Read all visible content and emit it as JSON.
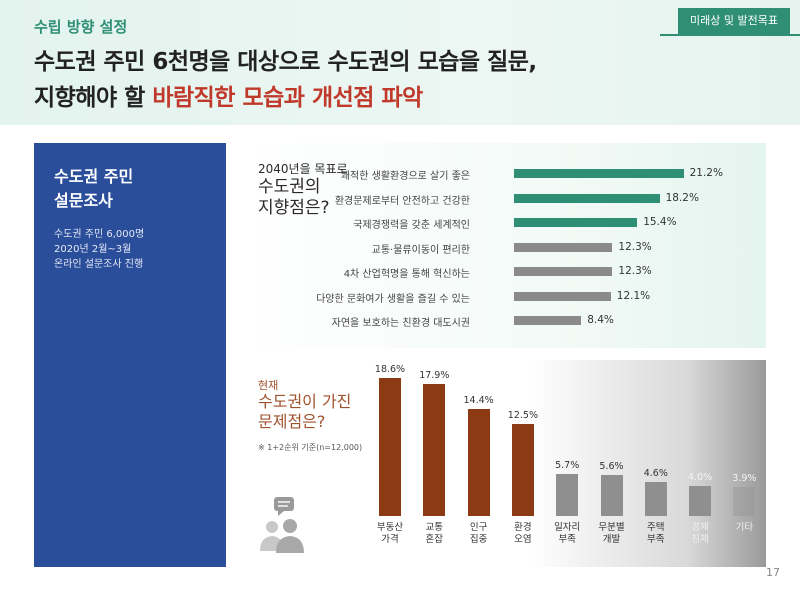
{
  "header": {
    "tab_label": "미래상 및 발전목표",
    "section_tag": "수립 방향 설정",
    "headline_line1": "수도권 주민 6천명을 대상으로 수도권의 모습을 질문,",
    "headline_line2_plain": "지향해야 할 ",
    "headline_line2_highlight": "바람직한 모습과 개선점 파악"
  },
  "survey": {
    "title_line1": "수도권 주민",
    "title_line2": "설문조사",
    "desc_line1": "수도권 주민 6,000명",
    "desc_line2": "2020년 2월~3월",
    "desc_line3": "온라인 설문조사 진행"
  },
  "page_number": "17",
  "colors": {
    "green": "#2f8f74",
    "gray_bar": "#8a8a8a",
    "brown": "#8b3a14",
    "gray_col": "#8f8f8f",
    "navy": "#2b4e9b"
  },
  "chart_data": [
    {
      "type": "bar",
      "orientation": "horizontal",
      "title_small": "2040년을 목표로",
      "title_line1": "수도권의",
      "title_line2": "지향점은?",
      "categories": [
        "쾌적한 생활환경으로 살기 좋은",
        "환경문제로부터 안전하고 건강한",
        "국제경쟁력을 갖춘 세계적인",
        "교통·물류이동이 편리한",
        "4차 산업혁명을 통해 혁신하는",
        "다양한 문화여가 생활을 즐길 수 있는",
        "자연을 보호하는 친환경 대도시권"
      ],
      "values": [
        21.2,
        18.2,
        15.4,
        12.3,
        12.3,
        12.1,
        8.4
      ],
      "value_labels": [
        "21.2%",
        "18.2%",
        "15.4%",
        "12.3%",
        "12.3%",
        "12.1%",
        "8.4%"
      ],
      "highlight_count": 3,
      "xlim": [
        0,
        25
      ]
    },
    {
      "type": "bar",
      "orientation": "vertical",
      "kicker": "현재",
      "title_line1": "수도권이 가진",
      "title_line2": "문제점은?",
      "note": "※ 1+2순위 기준(n=12,000)",
      "categories": [
        [
          "부동산",
          "가격"
        ],
        [
          "교통",
          "혼잡"
        ],
        [
          "인구",
          "집중"
        ],
        [
          "환경",
          "오염"
        ],
        [
          "일자리",
          "부족"
        ],
        [
          "무분별",
          "개발"
        ],
        [
          "주택",
          "부족"
        ],
        [
          "경제",
          "침체"
        ],
        [
          "기타",
          ""
        ]
      ],
      "values": [
        18.6,
        17.9,
        14.4,
        12.5,
        5.7,
        5.6,
        4.6,
        4.0,
        3.9
      ],
      "value_labels": [
        "18.6%",
        "17.9%",
        "14.4%",
        "12.5%",
        "5.7%",
        "5.6%",
        "4.6%",
        "4.0%",
        "3.9%"
      ],
      "highlight_count": 4,
      "ylim": [
        0,
        20
      ]
    }
  ]
}
